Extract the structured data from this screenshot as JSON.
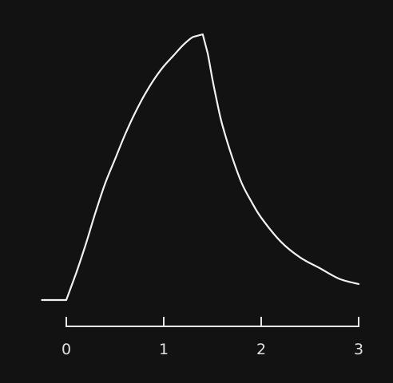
{
  "colors": {
    "background": "#121212",
    "trace": "#f2f2f2",
    "axis": "#e6e6e6",
    "labels": "#e0e0e0"
  },
  "chart_data": {
    "type": "line",
    "title": "",
    "xlabel": "",
    "ylabel": "",
    "xlim": [
      -0.25,
      3
    ],
    "ylim": [
      0,
      1
    ],
    "grid": false,
    "legend": "none",
    "x_ticks": [
      0,
      1,
      2,
      3
    ],
    "x_tick_labels": [
      "0",
      "1",
      "2",
      "3"
    ],
    "series": [
      {
        "x": [
          -0.25,
          0.0,
          0.1,
          0.2,
          0.3,
          0.4,
          0.5,
          0.6,
          0.7,
          0.8,
          0.9,
          1.0,
          1.1,
          1.2,
          1.3,
          1.4,
          1.45,
          1.5,
          1.55,
          1.6,
          1.7,
          1.8,
          1.9,
          2.0,
          2.2,
          2.4,
          2.6,
          2.8,
          3.0
        ],
        "y": [
          0.0,
          0.0,
          0.1,
          0.21,
          0.33,
          0.44,
          0.53,
          0.62,
          0.7,
          0.77,
          0.83,
          0.88,
          0.92,
          0.96,
          0.99,
          1.0,
          0.93,
          0.83,
          0.74,
          0.66,
          0.54,
          0.44,
          0.37,
          0.31,
          0.22,
          0.16,
          0.12,
          0.08,
          0.06
        ]
      }
    ]
  }
}
